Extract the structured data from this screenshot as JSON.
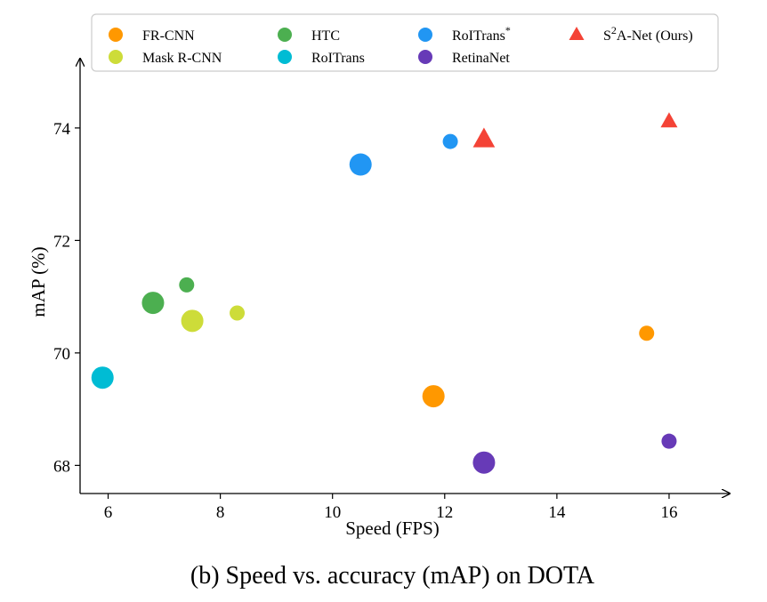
{
  "chart_data": {
    "type": "scatter",
    "caption": "(b) Speed vs. accuracy (mAP) on DOTA",
    "xlabel": "Speed (FPS)",
    "ylabel": "mAP (%)",
    "xlim": [
      5.5,
      17.0
    ],
    "ylim": [
      67.5,
      75.2
    ],
    "xticks": [
      6,
      8,
      10,
      12,
      14,
      16
    ],
    "yticks": [
      68,
      70,
      72,
      74
    ],
    "legend_position": "top",
    "series": [
      {
        "name": "FR-CNN",
        "color": "#ff9800",
        "marker": "circle",
        "points": [
          {
            "x": 11.8,
            "y": 69.23,
            "size": "large"
          },
          {
            "x": 15.6,
            "y": 70.35,
            "size": "small"
          }
        ]
      },
      {
        "name": "Mask R-CNN",
        "color": "#cddc39",
        "marker": "circle",
        "points": [
          {
            "x": 7.5,
            "y": 70.57,
            "size": "large"
          },
          {
            "x": 8.3,
            "y": 70.71,
            "size": "small"
          }
        ]
      },
      {
        "name": "HTC",
        "color": "#4caf50",
        "marker": "circle",
        "points": [
          {
            "x": 6.8,
            "y": 70.89,
            "size": "large"
          },
          {
            "x": 7.4,
            "y": 71.21,
            "size": "small"
          }
        ]
      },
      {
        "name": "RoITrans",
        "color": "#00bcd4",
        "marker": "circle",
        "points": [
          {
            "x": 5.9,
            "y": 69.56,
            "size": "large"
          }
        ]
      },
      {
        "name": "RoITrans*",
        "color": "#2196f3",
        "marker": "circle",
        "points": [
          {
            "x": 10.5,
            "y": 73.35,
            "size": "large"
          },
          {
            "x": 12.1,
            "y": 73.76,
            "size": "small"
          }
        ]
      },
      {
        "name": "RetinaNet",
        "color": "#673ab7",
        "marker": "circle",
        "points": [
          {
            "x": 12.7,
            "y": 68.05,
            "size": "large"
          },
          {
            "x": 16.0,
            "y": 68.43,
            "size": "small"
          }
        ]
      },
      {
        "name": "S2A-Net (Ours)",
        "color": "#f44336",
        "marker": "triangle",
        "points": [
          {
            "x": 12.7,
            "y": 73.8,
            "size": "large"
          },
          {
            "x": 16.0,
            "y": 74.12,
            "size": "small"
          }
        ]
      }
    ],
    "legend": [
      {
        "label": "FR-CNN",
        "color": "#ff9800",
        "marker": "circle"
      },
      {
        "label": "HTC",
        "color": "#4caf50",
        "marker": "circle"
      },
      {
        "label": "RoITrans",
        "sup": "*",
        "color": "#2196f3",
        "marker": "circle"
      },
      {
        "label": "S",
        "sup": "2",
        "suffix": "A-Net (Ours)",
        "color": "#f44336",
        "marker": "triangle"
      },
      {
        "label": "Mask R-CNN",
        "color": "#cddc39",
        "marker": "circle"
      },
      {
        "label": "RoITrans",
        "color": "#00bcd4",
        "marker": "circle"
      },
      {
        "label": "RetinaNet",
        "color": "#673ab7",
        "marker": "circle"
      }
    ]
  }
}
